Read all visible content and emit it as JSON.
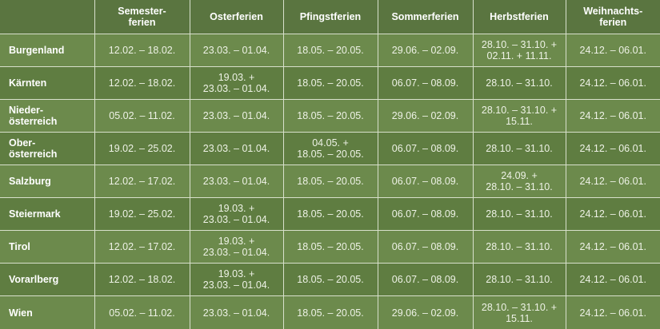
{
  "headers": [
    "",
    "Semester-\nferien",
    "Osterferien",
    "Pfingstferien",
    "Sommerferien",
    "Herbstferien",
    "Weihnachts-\nferien"
  ],
  "rows": [
    {
      "state": "Burgenland",
      "cells": [
        "12.02. – 18.02.",
        "23.03. – 01.04.",
        "18.05. – 20.05.",
        "29.06. – 02.09.",
        "28.10. – 31.10. +\n02.11. + 11.11.",
        "24.12. – 06.01."
      ]
    },
    {
      "state": "Kärnten",
      "cells": [
        "12.02. – 18.02.",
        "19.03. +\n23.03. – 01.04.",
        "18.05. – 20.05.",
        "06.07. – 08.09.",
        "28.10. – 31.10.",
        "24.12. – 06.01."
      ]
    },
    {
      "state": "Nieder-\nösterreich",
      "cells": [
        "05.02. – 11.02.",
        "23.03. – 01.04.",
        "18.05. – 20.05.",
        "29.06. – 02.09.",
        "28.10. – 31.10. +\n15.11.",
        "24.12. – 06.01."
      ]
    },
    {
      "state": "Ober-\nösterreich",
      "cells": [
        "19.02. – 25.02.",
        "23.03. – 01.04.",
        "04.05. +\n18.05. – 20.05.",
        "06.07. – 08.09.",
        "28.10. – 31.10.",
        "24.12. – 06.01."
      ]
    },
    {
      "state": "Salzburg",
      "cells": [
        "12.02. – 17.02.",
        "23.03. – 01.04.",
        "18.05. – 20.05.",
        "06.07. – 08.09.",
        "24.09. +\n28.10. – 31.10.",
        "24.12. – 06.01."
      ]
    },
    {
      "state": "Steiermark",
      "cells": [
        "19.02. – 25.02.",
        "19.03. +\n23.03. – 01.04.",
        "18.05. – 20.05.",
        "06.07. – 08.09.",
        "28.10. – 31.10.",
        "24.12. – 06.01."
      ]
    },
    {
      "state": "Tirol",
      "cells": [
        "12.02. – 17.02.",
        "19.03. +\n23.03. – 01.04.",
        "18.05. – 20.05.",
        "06.07. – 08.09.",
        "28.10. – 31.10.",
        "24.12. – 06.01."
      ]
    },
    {
      "state": "Vorarlberg",
      "cells": [
        "12.02. – 18.02.",
        "19.03. +\n23.03. – 01.04.",
        "18.05. – 20.05.",
        "06.07. – 08.09.",
        "28.10. – 31.10.",
        "24.12. – 06.01."
      ]
    },
    {
      "state": "Wien",
      "cells": [
        "05.02. – 11.02.",
        "23.03. – 01.04.",
        "18.05. – 20.05.",
        "29.06. – 02.09.",
        "28.10. – 31.10. +\n15.11.",
        "24.12. – 06.01."
      ]
    }
  ],
  "colors": {
    "header_bg": "#5a7540",
    "row_light": "#6c8a4c",
    "row_dark": "#5f7d41",
    "border": "#d8e0cc"
  }
}
